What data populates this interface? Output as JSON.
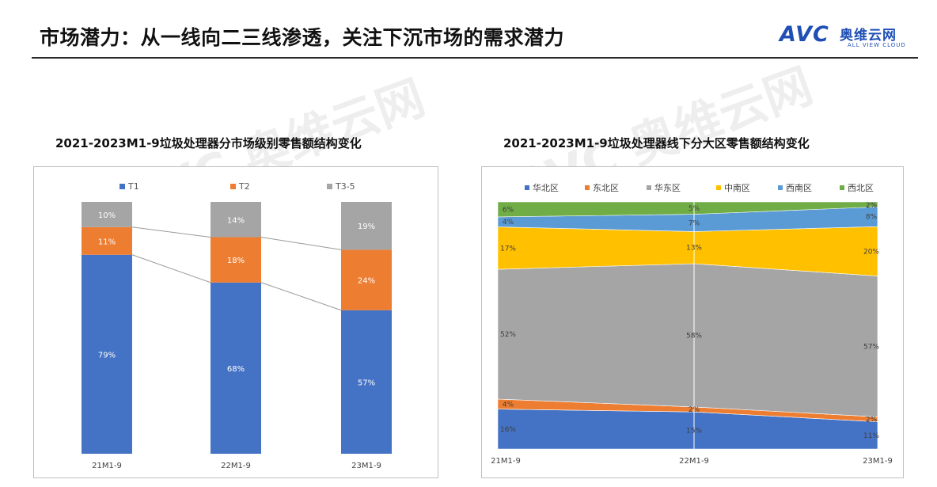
{
  "page": {
    "title": "市场潜力：从一线向二三线渗透，关注下沉市场的需求潜力",
    "logo": {
      "main": "AVC",
      "cn": "奥维云网",
      "en": "ALL VIEW CLOUD"
    }
  },
  "colors": {
    "T1": "#4472c4",
    "T2": "#ed7d31",
    "T3-5": "#a5a5a5",
    "华北区": "#4472c4",
    "东北区": "#ed7d31",
    "华东区": "#a5a5a5",
    "中南区": "#ffc000",
    "西南区": "#5b9bd5",
    "西北区": "#70ad47"
  },
  "chart_data": [
    {
      "type": "bar",
      "stacked": true,
      "percent": true,
      "title": "2021-2023M1-9垃圾处理器分市场级别零售额结构变化",
      "categories": [
        "21M1-9",
        "22M1-9",
        "23M1-9"
      ],
      "series": [
        {
          "name": "T1",
          "values": [
            79,
            68,
            57
          ]
        },
        {
          "name": "T2",
          "values": [
            11,
            18,
            24
          ]
        },
        {
          "name": "T3-5",
          "values": [
            10,
            14,
            19
          ]
        }
      ],
      "legend": "top",
      "grid": false
    },
    {
      "type": "area",
      "stacked": true,
      "percent": true,
      "title": "2021-2023M1-9垃圾处理器线下分大区零售额结构变化",
      "categories": [
        "21M1-9",
        "22M1-9",
        "23M1-9"
      ],
      "series": [
        {
          "name": "华北区",
          "values": [
            16,
            15,
            11
          ]
        },
        {
          "name": "东北区",
          "values": [
            4,
            2,
            2
          ]
        },
        {
          "name": "华东区",
          "values": [
            52,
            58,
            57
          ]
        },
        {
          "name": "中南区",
          "values": [
            17,
            13,
            20
          ]
        },
        {
          "name": "西南区",
          "values": [
            4,
            7,
            8
          ]
        },
        {
          "name": "西北区",
          "values": [
            6,
            5,
            2
          ]
        }
      ],
      "legend": "top",
      "grid": false
    }
  ]
}
